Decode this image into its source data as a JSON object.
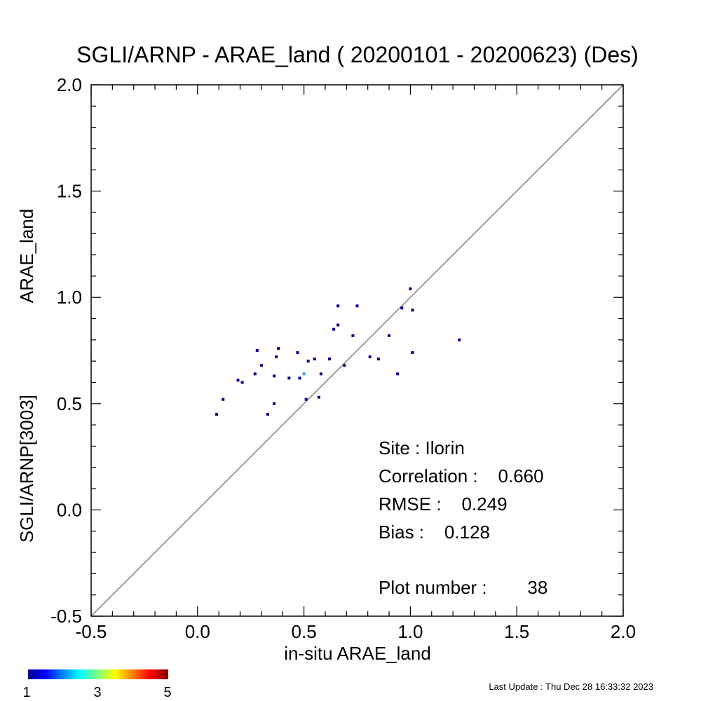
{
  "chart_data": {
    "type": "scatter",
    "title": "SGLI/ARNP - ARAE_land ( 20200101 - 20200623) (Des)",
    "xlabel": "in-situ ARAE_land",
    "ylabel_line1": "SGLI/ARNP[3003]",
    "ylabel_line2": "ARAE_land",
    "xlim": [
      -0.5,
      2.0
    ],
    "ylim": [
      -0.5,
      2.0
    ],
    "xticks": [
      "-0.5",
      "0.0",
      "0.5",
      "1.0",
      "1.5",
      "2.0"
    ],
    "yticks": [
      "-0.5",
      "0.0",
      "0.5",
      "1.0",
      "1.5",
      "2.0"
    ],
    "one_to_one_line": true,
    "grid": false,
    "points": [
      {
        "x": 0.09,
        "y": 0.45,
        "c": 1
      },
      {
        "x": 0.12,
        "y": 0.52,
        "c": 1
      },
      {
        "x": 0.19,
        "y": 0.61,
        "c": 1
      },
      {
        "x": 0.21,
        "y": 0.6,
        "c": 1
      },
      {
        "x": 0.27,
        "y": 0.64,
        "c": 1
      },
      {
        "x": 0.28,
        "y": 0.75,
        "c": 1
      },
      {
        "x": 0.3,
        "y": 0.68,
        "c": 1
      },
      {
        "x": 0.33,
        "y": 0.45,
        "c": 1
      },
      {
        "x": 0.36,
        "y": 0.5,
        "c": 1
      },
      {
        "x": 0.36,
        "y": 0.63,
        "c": 1
      },
      {
        "x": 0.37,
        "y": 0.72,
        "c": 1
      },
      {
        "x": 0.38,
        "y": 0.76,
        "c": 1
      },
      {
        "x": 0.43,
        "y": 0.62,
        "c": 1
      },
      {
        "x": 0.47,
        "y": 0.74,
        "c": 1
      },
      {
        "x": 0.48,
        "y": 0.62,
        "c": 1
      },
      {
        "x": 0.5,
        "y": 0.64,
        "c": 2
      },
      {
        "x": 0.51,
        "y": 0.52,
        "c": 1
      },
      {
        "x": 0.52,
        "y": 0.7,
        "c": 1
      },
      {
        "x": 0.55,
        "y": 0.71,
        "c": 1
      },
      {
        "x": 0.57,
        "y": 0.53,
        "c": 1
      },
      {
        "x": 0.58,
        "y": 0.64,
        "c": 1
      },
      {
        "x": 0.62,
        "y": 0.71,
        "c": 1
      },
      {
        "x": 0.64,
        "y": 0.85,
        "c": 1
      },
      {
        "x": 0.66,
        "y": 0.87,
        "c": 1
      },
      {
        "x": 0.66,
        "y": 0.96,
        "c": 1
      },
      {
        "x": 0.69,
        "y": 0.68,
        "c": 1
      },
      {
        "x": 0.73,
        "y": 0.82,
        "c": 1
      },
      {
        "x": 0.75,
        "y": 0.96,
        "c": 1
      },
      {
        "x": 0.81,
        "y": 0.72,
        "c": 1
      },
      {
        "x": 0.85,
        "y": 0.71,
        "c": 1
      },
      {
        "x": 0.9,
        "y": 0.82,
        "c": 1
      },
      {
        "x": 0.94,
        "y": 0.64,
        "c": 1
      },
      {
        "x": 0.96,
        "y": 0.95,
        "c": 1
      },
      {
        "x": 1.0,
        "y": 1.04,
        "c": 1
      },
      {
        "x": 1.01,
        "y": 0.94,
        "c": 1
      },
      {
        "x": 1.01,
        "y": 0.74,
        "c": 1
      },
      {
        "x": 1.23,
        "y": 0.8,
        "c": 1
      }
    ],
    "colorbar": {
      "min": 1,
      "max": 5,
      "labels": [
        "1",
        "3",
        "5"
      ],
      "colors": [
        "#00008f",
        "#0000ff",
        "#00ffff",
        "#ffff00",
        "#ff0000",
        "#800000"
      ]
    },
    "stats": {
      "site": "Site : Ilorin",
      "correlation": "Correlation :    0.660",
      "rmse": "RMSE :    0.249",
      "bias": "Bias :    0.128",
      "plot_number": "Plot number :        38"
    },
    "last_update": "Last Update : Thu Dec 28 16:33:32 2023"
  }
}
